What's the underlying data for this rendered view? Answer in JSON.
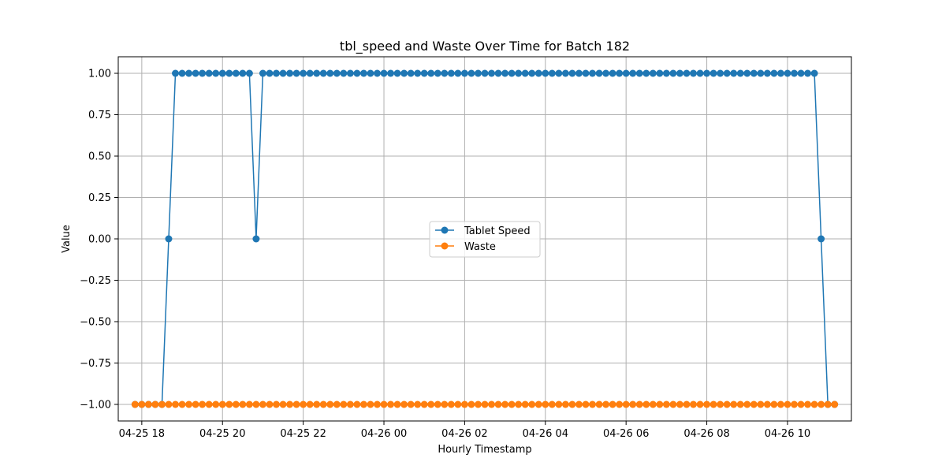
{
  "chart_data": {
    "type": "line",
    "title": "tbl_speed and Waste Over Time for Batch 182",
    "xlabel": "Hourly Timestamp",
    "ylabel": "Value",
    "ylim": [
      -1.1,
      1.1
    ],
    "yticks": [
      -1.0,
      -0.75,
      -0.5,
      -0.25,
      0.0,
      0.25,
      0.5,
      0.75,
      1.0
    ],
    "ytick_labels": [
      "−1.00",
      "−0.75",
      "−0.50",
      "−0.25",
      "0.00",
      "0.25",
      "0.50",
      "0.75",
      "1.00"
    ],
    "xlim": [
      "2025-04-25 17:25",
      "2025-04-26 11:35"
    ],
    "xticks": [
      "2025-04-25 18:00",
      "2025-04-25 20:00",
      "2025-04-25 22:00",
      "2025-04-26 00:00",
      "2025-04-26 02:00",
      "2025-04-26 04:00",
      "2025-04-26 06:00",
      "2025-04-26 08:00",
      "2025-04-26 10:00"
    ],
    "xtick_labels": [
      "04-25 18",
      "04-25 20",
      "04-25 22",
      "04-26 00",
      "04-26 02",
      "04-26 04",
      "04-26 06",
      "04-26 08",
      "04-26 10"
    ],
    "grid": true,
    "legend_position": "center",
    "series": [
      {
        "name": "Tablet Speed",
        "color": "#1f77b4",
        "x_start": "2025-04-25 17:50",
        "step_minutes": 10,
        "values": [
          -1,
          -1,
          -1,
          -1,
          -1,
          0,
          1,
          1,
          1,
          1,
          1,
          1,
          1,
          1,
          1,
          1,
          1,
          1,
          0,
          1,
          1,
          1,
          1,
          1,
          1,
          1,
          1,
          1,
          1,
          1,
          1,
          1,
          1,
          1,
          1,
          1,
          1,
          1,
          1,
          1,
          1,
          1,
          1,
          1,
          1,
          1,
          1,
          1,
          1,
          1,
          1,
          1,
          1,
          1,
          1,
          1,
          1,
          1,
          1,
          1,
          1,
          1,
          1,
          1,
          1,
          1,
          1,
          1,
          1,
          1,
          1,
          1,
          1,
          1,
          1,
          1,
          1,
          1,
          1,
          1,
          1,
          1,
          1,
          1,
          1,
          1,
          1,
          1,
          1,
          1,
          1,
          1,
          1,
          1,
          1,
          1,
          1,
          1,
          1,
          1,
          1,
          1,
          0,
          -1,
          -1
        ]
      },
      {
        "name": "Waste",
        "color": "#ff7f0e",
        "x_start": "2025-04-25 17:50",
        "step_minutes": 10,
        "values": [
          -1,
          -1,
          -1,
          -1,
          -1,
          -1,
          -1,
          -1,
          -1,
          -1,
          -1,
          -1,
          -1,
          -1,
          -1,
          -1,
          -1,
          -1,
          -1,
          -1,
          -1,
          -1,
          -1,
          -1,
          -1,
          -1,
          -1,
          -1,
          -1,
          -1,
          -1,
          -1,
          -1,
          -1,
          -1,
          -1,
          -1,
          -1,
          -1,
          -1,
          -1,
          -1,
          -1,
          -1,
          -1,
          -1,
          -1,
          -1,
          -1,
          -1,
          -1,
          -1,
          -1,
          -1,
          -1,
          -1,
          -1,
          -1,
          -1,
          -1,
          -1,
          -1,
          -1,
          -1,
          -1,
          -1,
          -1,
          -1,
          -1,
          -1,
          -1,
          -1,
          -1,
          -1,
          -1,
          -1,
          -1,
          -1,
          -1,
          -1,
          -1,
          -1,
          -1,
          -1,
          -1,
          -1,
          -1,
          -1,
          -1,
          -1,
          -1,
          -1,
          -1,
          -1,
          -1,
          -1,
          -1,
          -1,
          -1,
          -1,
          -1,
          -1,
          -1,
          -1,
          -1
        ]
      }
    ]
  }
}
